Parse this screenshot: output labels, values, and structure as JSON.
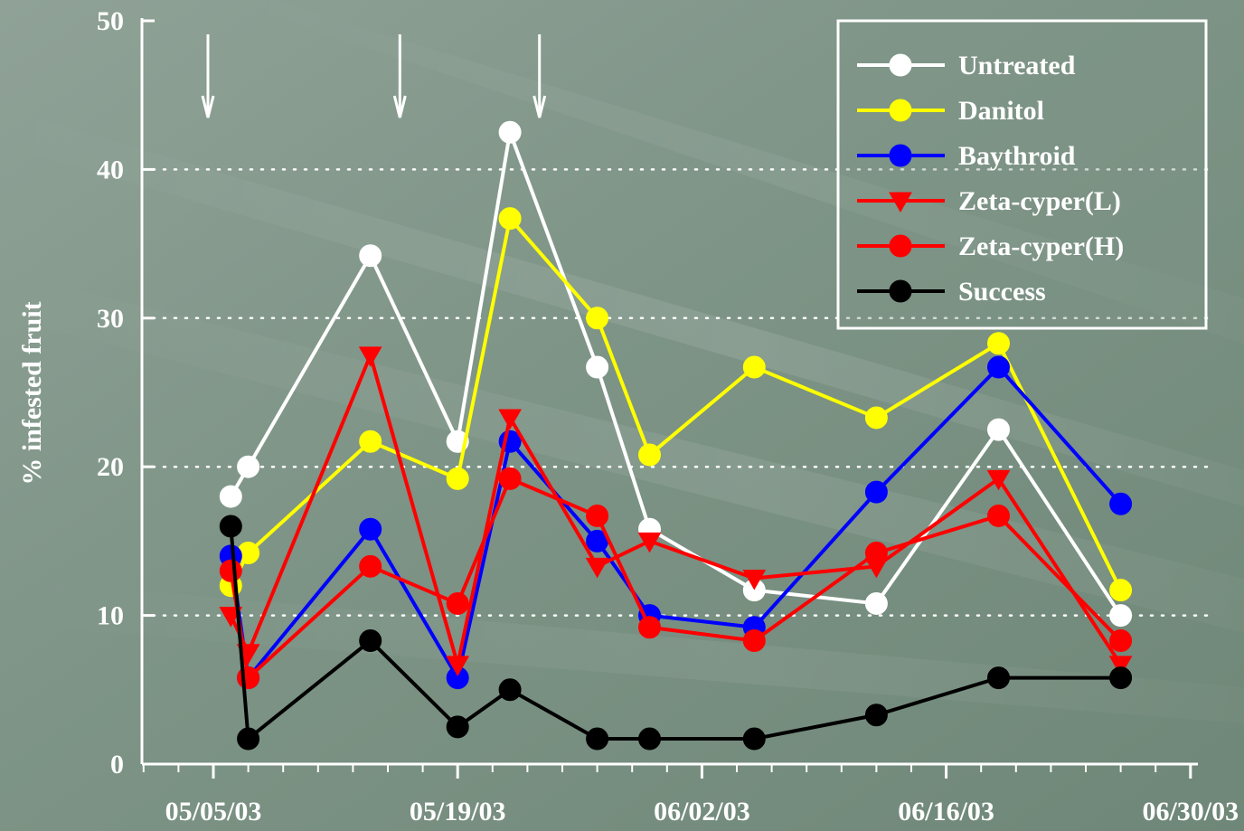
{
  "chart_data": {
    "type": "line",
    "title": "",
    "xlabel": "",
    "ylabel": "% infested fruit",
    "ylim": [
      0,
      50
    ],
    "xlim": [
      "2003-05-01",
      "2003-07-01"
    ],
    "x_tick_labels": [
      "05/05/03",
      "05/19/03",
      "06/02/03",
      "06/16/03",
      "06/30/03"
    ],
    "x_tick_dates": [
      "2003-05-05",
      "2003-05-19",
      "2003-06-02",
      "2003-06-16",
      "2003-06-30"
    ],
    "y_ticks": [
      0,
      10,
      20,
      30,
      40,
      50
    ],
    "grid": "horizontal dotted at 10, 20, 30, 40",
    "legend_position": "top-right",
    "annotations": {
      "arrows_down_at": [
        "2003-05-05",
        "2003-05-16",
        "2003-05-24"
      ],
      "meaning": "application dates"
    },
    "series": [
      {
        "name": "Untreated",
        "color": "#ffffff",
        "marker": "circle",
        "points": [
          [
            "2003-05-06",
            18
          ],
          [
            "2003-05-07",
            20
          ],
          [
            "2003-05-14",
            34.2
          ],
          [
            "2003-05-19",
            21.7
          ],
          [
            "2003-05-22",
            42.5
          ],
          [
            "2003-05-27",
            26.7
          ],
          [
            "2003-05-30",
            15.8
          ],
          [
            "2003-06-05",
            11.7
          ],
          [
            "2003-06-12",
            10.8
          ],
          [
            "2003-06-19",
            22.5
          ],
          [
            "2003-06-26",
            10
          ]
        ]
      },
      {
        "name": "Danitol",
        "color": "#ffff00",
        "marker": "circle",
        "points": [
          [
            "2003-05-06",
            12
          ],
          [
            "2003-05-07",
            14.2
          ],
          [
            "2003-05-14",
            21.7
          ],
          [
            "2003-05-19",
            19.2
          ],
          [
            "2003-05-22",
            36.7
          ],
          [
            "2003-05-27",
            30
          ],
          [
            "2003-05-30",
            20.8
          ],
          [
            "2003-06-05",
            26.7
          ],
          [
            "2003-06-12",
            23.3
          ],
          [
            "2003-06-19",
            28.3
          ],
          [
            "2003-06-26",
            11.7
          ]
        ]
      },
      {
        "name": "Baythroid",
        "color": "#0000ff",
        "marker": "circle",
        "points": [
          [
            "2003-05-06",
            14
          ],
          [
            "2003-05-07",
            5.8
          ],
          [
            "2003-05-14",
            15.8
          ],
          [
            "2003-05-19",
            5.8
          ],
          [
            "2003-05-22",
            21.7
          ],
          [
            "2003-05-27",
            15
          ],
          [
            "2003-05-30",
            10
          ],
          [
            "2003-06-05",
            9.2
          ],
          [
            "2003-06-12",
            18.3
          ],
          [
            "2003-06-19",
            26.7
          ],
          [
            "2003-06-26",
            17.5
          ]
        ]
      },
      {
        "name": "Zeta-cyper(L)",
        "color": "#ff0000",
        "marker": "triangle-down",
        "points": [
          [
            "2003-05-06",
            10
          ],
          [
            "2003-05-07",
            7.5
          ],
          [
            "2003-05-14",
            27.5
          ],
          [
            "2003-05-19",
            6.7
          ],
          [
            "2003-05-22",
            23.3
          ],
          [
            "2003-05-27",
            13.3
          ],
          [
            "2003-05-30",
            15
          ],
          [
            "2003-06-05",
            12.5
          ],
          [
            "2003-06-12",
            13.3
          ],
          [
            "2003-06-19",
            19.2
          ],
          [
            "2003-06-26",
            6.7
          ]
        ]
      },
      {
        "name": "Zeta-cyper(H)",
        "color": "#ff0000",
        "marker": "circle",
        "points": [
          [
            "2003-05-06",
            13
          ],
          [
            "2003-05-07",
            5.8
          ],
          [
            "2003-05-14",
            13.3
          ],
          [
            "2003-05-19",
            10.8
          ],
          [
            "2003-05-22",
            19.2
          ],
          [
            "2003-05-27",
            16.7
          ],
          [
            "2003-05-30",
            9.2
          ],
          [
            "2003-06-05",
            8.3
          ],
          [
            "2003-06-12",
            14.2
          ],
          [
            "2003-06-19",
            16.7
          ],
          [
            "2003-06-26",
            8.3
          ]
        ]
      },
      {
        "name": "Success",
        "color": "#000000",
        "marker": "circle",
        "points": [
          [
            "2003-05-06",
            16
          ],
          [
            "2003-05-07",
            1.7
          ],
          [
            "2003-05-14",
            8.3
          ],
          [
            "2003-05-19",
            2.5
          ],
          [
            "2003-05-22",
            5
          ],
          [
            "2003-05-27",
            1.7
          ],
          [
            "2003-05-30",
            1.7
          ],
          [
            "2003-06-05",
            1.7
          ],
          [
            "2003-06-12",
            3.3
          ],
          [
            "2003-06-19",
            5.8
          ],
          [
            "2003-06-26",
            5.8
          ]
        ]
      }
    ]
  }
}
